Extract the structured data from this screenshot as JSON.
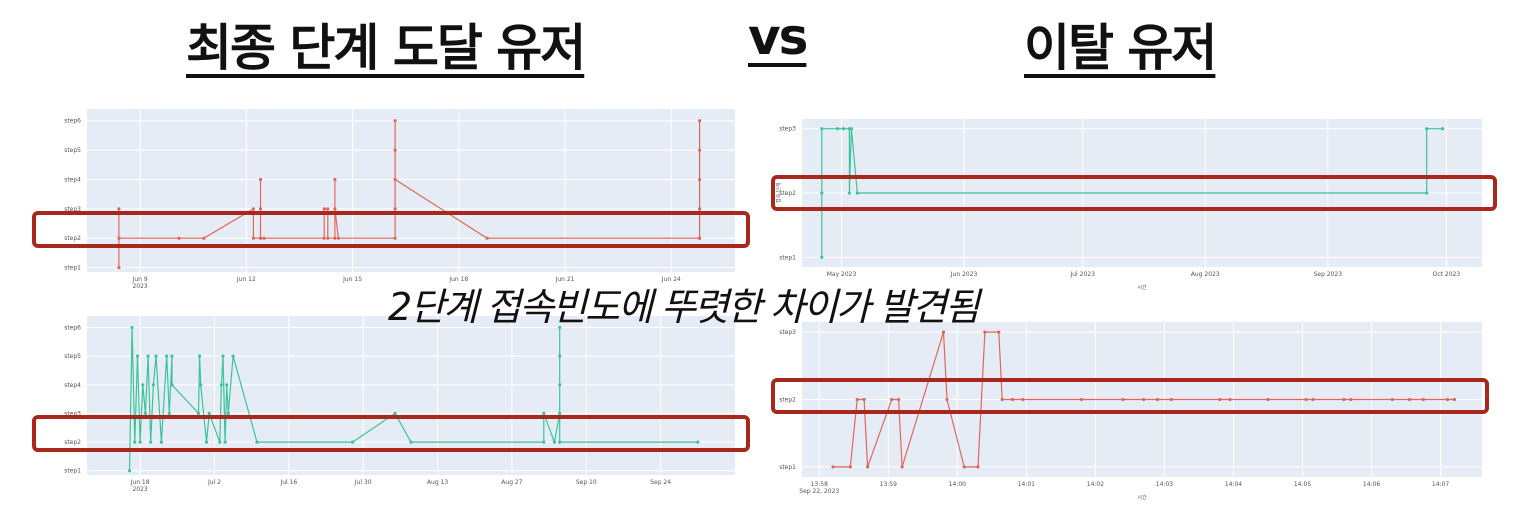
{
  "header": {
    "left_title": "최종 단계 도달 유저",
    "vs_label": "vs",
    "right_title": "이탈 유저"
  },
  "subtitle": "2단계 접속빈도에 뚜렷한 차이가 발견됨",
  "colors": {
    "plot_bg": "#e5ecf6",
    "orange": "#e0685a",
    "teal": "#3cc39a",
    "highlight": "#a8281e"
  },
  "chart_data": [
    {
      "id": "top-left",
      "type": "line",
      "color": "orange",
      "y_categories": [
        "step1",
        "step2",
        "step3",
        "step4",
        "step5",
        "step6"
      ],
      "y_tick_labels": [
        "step1",
        "step2",
        "step3",
        "step4",
        "step5",
        "step6"
      ],
      "x_ticks": [
        {
          "label": "Jun 9",
          "sub": "2023",
          "x": 9
        },
        {
          "label": "Jun 12",
          "x": 12
        },
        {
          "label": "Jun 15",
          "x": 15
        },
        {
          "label": "Jun 18",
          "x": 18
        },
        {
          "label": "Jun 21",
          "x": 21
        },
        {
          "label": "Jun 24",
          "x": 24
        }
      ],
      "x_range": [
        7.5,
        25.8
      ],
      "y_range": [
        0.85,
        6.4
      ],
      "points": [
        [
          8.4,
          3
        ],
        [
          8.4,
          1
        ],
        [
          8.4,
          2
        ],
        [
          10.1,
          2
        ],
        [
          10.8,
          2
        ],
        [
          12.2,
          3
        ],
        [
          12.2,
          2
        ],
        [
          12.4,
          2
        ],
        [
          12.4,
          4
        ],
        [
          12.4,
          3
        ],
        [
          12.4,
          2
        ],
        [
          12.5,
          2
        ],
        [
          14.2,
          2
        ],
        [
          14.2,
          3
        ],
        [
          14.3,
          3
        ],
        [
          14.3,
          2
        ],
        [
          14.5,
          2
        ],
        [
          14.5,
          4
        ],
        [
          14.5,
          3
        ],
        [
          14.6,
          2
        ],
        [
          16.2,
          2
        ],
        [
          16.2,
          3
        ],
        [
          16.2,
          6
        ],
        [
          16.2,
          5
        ],
        [
          16.2,
          4
        ],
        [
          18.8,
          2
        ],
        [
          24.8,
          2
        ],
        [
          24.8,
          3
        ],
        [
          24.8,
          6
        ],
        [
          24.8,
          5
        ],
        [
          24.8,
          4
        ],
        [
          24.8,
          2
        ]
      ],
      "highlight_category": "step2"
    },
    {
      "id": "top-right",
      "type": "line",
      "color": "teal",
      "y_categories": [
        "step1",
        "step2",
        "step3"
      ],
      "y_tick_labels": [
        "step1",
        "step2",
        "step3"
      ],
      "y_axis_title": "접속 단계",
      "x_axis_title": "시간",
      "x_ticks": [
        {
          "label": "May 2023",
          "x": 0
        },
        {
          "label": "Jun 2023",
          "x": 31
        },
        {
          "label": "Jul 2023",
          "x": 61
        },
        {
          "label": "Aug 2023",
          "x": 92
        },
        {
          "label": "Sep 2023",
          "x": 123
        },
        {
          "label": "Oct 2023",
          "x": 153
        }
      ],
      "x_range": [
        -10,
        162
      ],
      "y_range": [
        0.85,
        3.15
      ],
      "points": [
        [
          -5,
          1
        ],
        [
          -5,
          2
        ],
        [
          -5,
          3
        ],
        [
          -1,
          3
        ],
        [
          0.5,
          3
        ],
        [
          2,
          3
        ],
        [
          2,
          2
        ],
        [
          2.5,
          3
        ],
        [
          4,
          2
        ],
        [
          148,
          2
        ],
        [
          148,
          3
        ],
        [
          152,
          3
        ]
      ],
      "highlight_category": "step2"
    },
    {
      "id": "bottom-left",
      "type": "line",
      "color": "teal",
      "y_categories": [
        "step1",
        "step2",
        "step3",
        "step4",
        "step5",
        "step6"
      ],
      "y_tick_labels": [
        "step1",
        "step2",
        "step3",
        "step4",
        "step5",
        "step6"
      ],
      "x_ticks": [
        {
          "label": "Jun 18",
          "sub": "2023",
          "x": 18
        },
        {
          "label": "Jul 2",
          "x": 32
        },
        {
          "label": "Jul 16",
          "x": 46
        },
        {
          "label": "Jul 30",
          "x": 60
        },
        {
          "label": "Aug 13",
          "x": 74
        },
        {
          "label": "Aug 27",
          "x": 88
        },
        {
          "label": "Sep 10",
          "x": 102
        },
        {
          "label": "Sep 24",
          "x": 116
        }
      ],
      "x_range": [
        8,
        130
      ],
      "y_range": [
        0.85,
        6.4
      ],
      "points": [
        [
          16,
          1
        ],
        [
          16.5,
          6
        ],
        [
          17,
          2
        ],
        [
          17.5,
          5
        ],
        [
          18,
          2
        ],
        [
          18.5,
          4
        ],
        [
          19,
          3
        ],
        [
          19.5,
          5
        ],
        [
          20,
          2
        ],
        [
          20.5,
          4
        ],
        [
          21,
          5
        ],
        [
          22,
          2
        ],
        [
          23,
          5
        ],
        [
          23.5,
          3
        ],
        [
          24,
          5
        ],
        [
          24,
          4
        ],
        [
          29,
          3
        ],
        [
          29.2,
          5
        ],
        [
          29.4,
          4
        ],
        [
          30.5,
          2
        ],
        [
          31,
          3
        ],
        [
          33,
          2
        ],
        [
          33.3,
          4
        ],
        [
          33.6,
          5
        ],
        [
          34,
          2
        ],
        [
          34.3,
          4
        ],
        [
          34.6,
          3
        ],
        [
          35.5,
          5
        ],
        [
          40,
          2
        ],
        [
          58,
          2
        ],
        [
          66,
          3
        ],
        [
          69,
          2
        ],
        [
          94,
          2
        ],
        [
          94,
          3
        ],
        [
          96,
          2
        ],
        [
          97,
          3
        ],
        [
          97,
          6
        ],
        [
          97,
          5
        ],
        [
          97,
          4
        ],
        [
          97,
          2
        ],
        [
          123,
          2
        ]
      ],
      "highlight_category": "step2"
    },
    {
      "id": "bottom-right",
      "type": "line",
      "color": "orange",
      "y_categories": [
        "step1",
        "step2",
        "step3"
      ],
      "y_tick_labels": [
        "step1",
        "step2",
        "step3"
      ],
      "x_axis_title": "시간",
      "x_ticks": [
        {
          "label": "13:58",
          "sub": "Sep 22, 2023",
          "x": 0
        },
        {
          "label": "13:59",
          "x": 1
        },
        {
          "label": "14:00",
          "x": 2
        },
        {
          "label": "14:01",
          "x": 3
        },
        {
          "label": "14:02",
          "x": 4
        },
        {
          "label": "14:03",
          "x": 5
        },
        {
          "label": "14:04",
          "x": 6
        },
        {
          "label": "14:05",
          "x": 7
        },
        {
          "label": "14:06",
          "x": 8
        },
        {
          "label": "14:07",
          "x": 9
        }
      ],
      "x_range": [
        -0.25,
        9.6
      ],
      "y_range": [
        0.85,
        3.15
      ],
      "points": [
        [
          0.2,
          1
        ],
        [
          0.45,
          1
        ],
        [
          0.55,
          2
        ],
        [
          0.65,
          2
        ],
        [
          0.7,
          1
        ],
        [
          1.05,
          2
        ],
        [
          1.15,
          2
        ],
        [
          1.2,
          1
        ],
        [
          1.8,
          3
        ],
        [
          1.85,
          2
        ],
        [
          2.1,
          1
        ],
        [
          2.3,
          1
        ],
        [
          2.4,
          3
        ],
        [
          2.6,
          3
        ],
        [
          2.65,
          2
        ],
        [
          2.8,
          2
        ],
        [
          2.95,
          2
        ],
        [
          3.8,
          2
        ],
        [
          4.4,
          2
        ],
        [
          4.7,
          2
        ],
        [
          4.9,
          2
        ],
        [
          5.1,
          2
        ],
        [
          5.8,
          2
        ],
        [
          5.95,
          2
        ],
        [
          6.5,
          2
        ],
        [
          7.05,
          2
        ],
        [
          7.15,
          2
        ],
        [
          7.6,
          2
        ],
        [
          7.7,
          2
        ],
        [
          8.3,
          2
        ],
        [
          8.55,
          2
        ],
        [
          8.75,
          2
        ],
        [
          9.1,
          2
        ],
        [
          9.2,
          2
        ]
      ],
      "highlight_category": "step2"
    }
  ]
}
